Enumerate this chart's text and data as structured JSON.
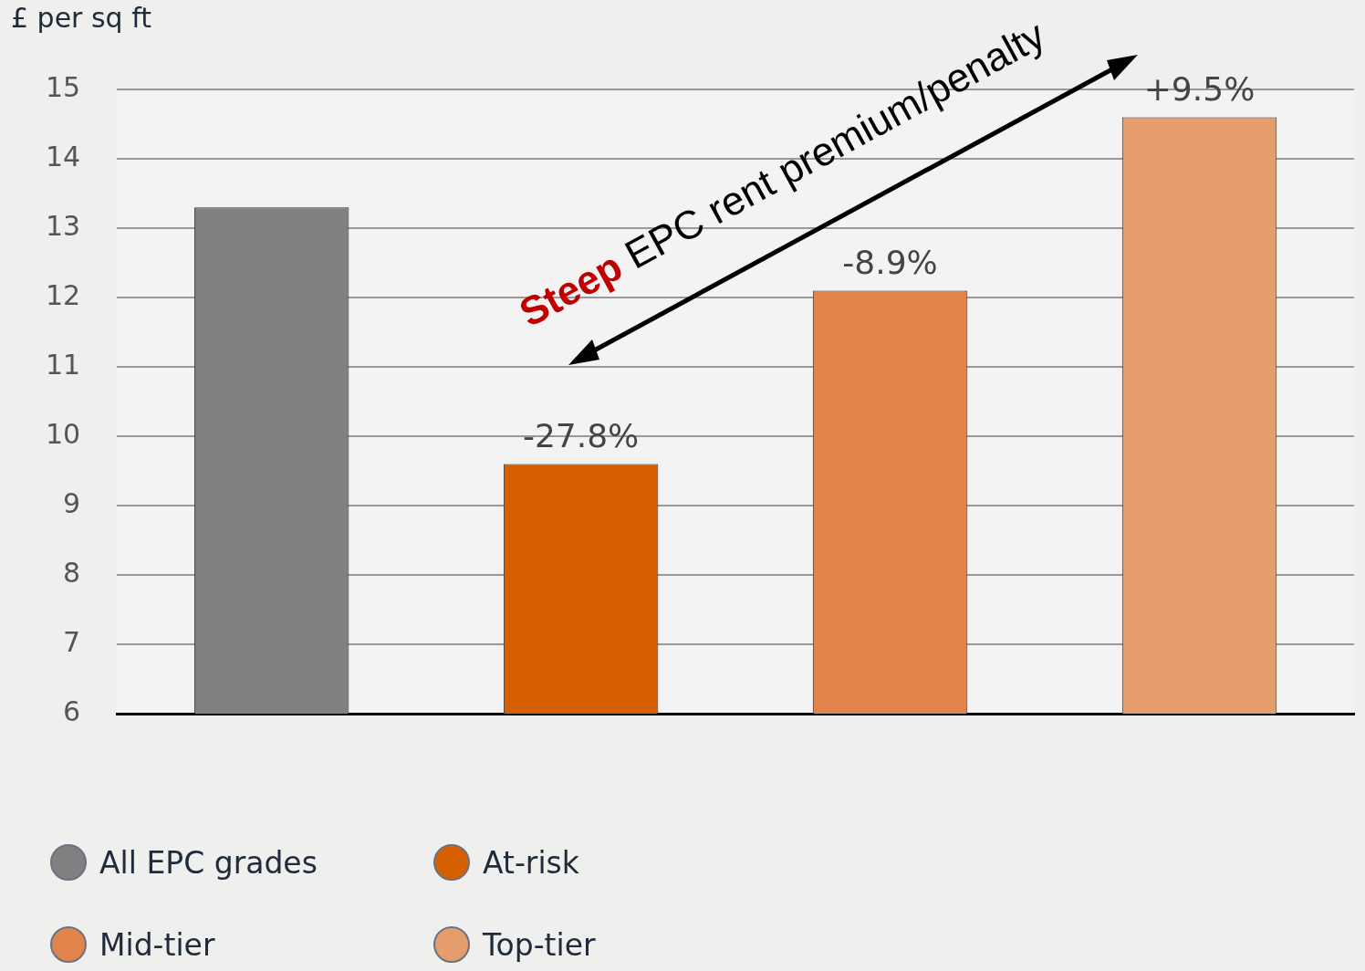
{
  "chart_data": {
    "type": "bar",
    "ylabel": "£ per sq ft",
    "categories": [
      null,
      null,
      null,
      null
    ],
    "series": [
      {
        "name": "All EPC grades",
        "color": "#808080",
        "values": [
          13.3,
          null,
          null,
          null
        ]
      },
      {
        "name": "At-risk",
        "color": "#d65f00",
        "values": [
          null,
          9.6,
          null,
          null
        ]
      },
      {
        "name": "Mid-tier",
        "color": "#e0844b",
        "values": [
          null,
          null,
          12.1,
          null
        ]
      },
      {
        "name": "Top-tier",
        "color": "#e69d6e",
        "values": [
          null,
          null,
          null,
          14.6
        ]
      }
    ],
    "ylim": [
      6,
      15
    ],
    "yticks": [
      6,
      7,
      8,
      9,
      10,
      11,
      12,
      13,
      14,
      15
    ],
    "grid": "y",
    "legend": "bottom",
    "annotations": [
      "Steep EPC rent premium/penalty",
      {
        "text": "-27.8%",
        "y": 9.6
      },
      {
        "text": "-8.9%",
        "y": 12.1
      },
      {
        "text": "+9.5%",
        "y": 14.6
      }
    ]
  }
}
